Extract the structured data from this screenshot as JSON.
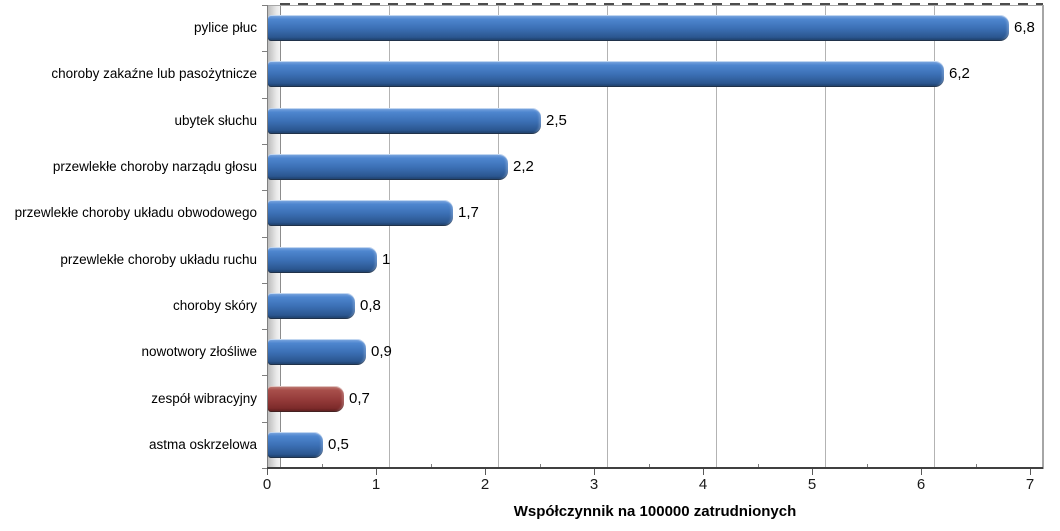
{
  "chart_data": {
    "type": "bar",
    "orientation": "horizontal",
    "title": "",
    "xlabel": "Współczynnik na 100000 zatrudnionych",
    "ylabel": "",
    "xlim": [
      0,
      7
    ],
    "x_ticks": [
      "0",
      "1",
      "2",
      "3",
      "4",
      "5",
      "6",
      "7"
    ],
    "grid": true,
    "legend": "none",
    "categories": [
      "pylice płuc",
      "choroby zakaźne lub pasożytnicze",
      "ubytek słuchu",
      "przewlekłe choroby narządu głosu",
      "przewlekłe choroby układu obwodowego",
      "przewlekłe choroby układu ruchu",
      "choroby skóry",
      "nowotwory złośliwe",
      "zespół wibracyjny",
      "astma oskrzelowa"
    ],
    "values": [
      6.8,
      6.2,
      2.5,
      2.2,
      1.7,
      1,
      0.8,
      0.9,
      0.7,
      0.5
    ],
    "value_labels": [
      "6,8",
      "6,2",
      "2,5",
      "2,2",
      "1,7",
      "1",
      "0,8",
      "0,9",
      "0,7",
      "0,5"
    ],
    "highlight_index": 8,
    "colors": {
      "bar_default": "#3b6fb4",
      "bar_highlight": "#953b3a",
      "gridline": "#b3b3b3",
      "axis": "#404040",
      "text": "#000000"
    }
  }
}
